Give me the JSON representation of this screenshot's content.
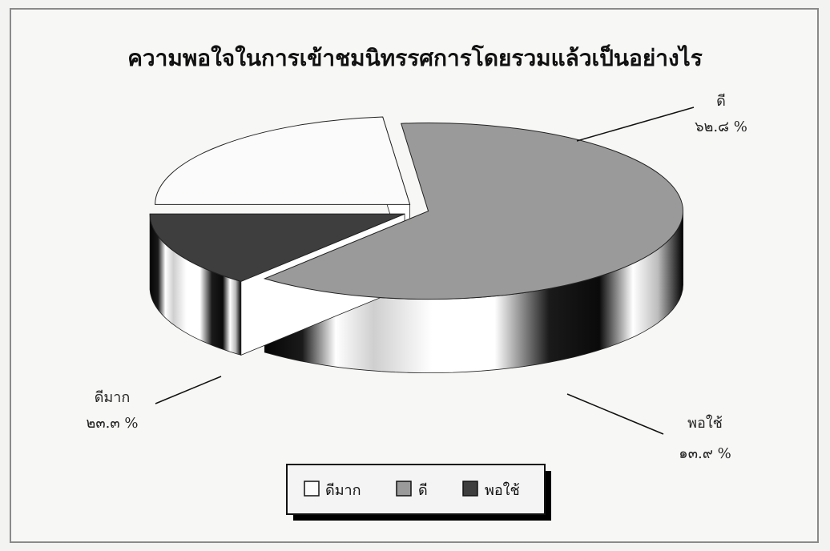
{
  "chart_data": {
    "type": "pie",
    "title": "ความพอใจในการเข้าชมนิทรรศการโดยรวมแล้วเป็นอย่างไร",
    "slices": [
      {
        "name": "ดีมาก",
        "value": 23.3,
        "label": "๒๓.๓ %",
        "color": "#fbfbfb"
      },
      {
        "name": "ดี",
        "value": 62.8,
        "label": "๖๒.๘ %",
        "color": "#9a9a9a"
      },
      {
        "name": "พอใช้",
        "value": 13.9,
        "label": "๑๓.๙ %",
        "color": "#3e3e3e"
      }
    ],
    "legend": {
      "position": "bottom",
      "items": [
        "ดีมาก",
        "ดี",
        "พอใช้"
      ]
    },
    "style": "3d-exploded"
  }
}
